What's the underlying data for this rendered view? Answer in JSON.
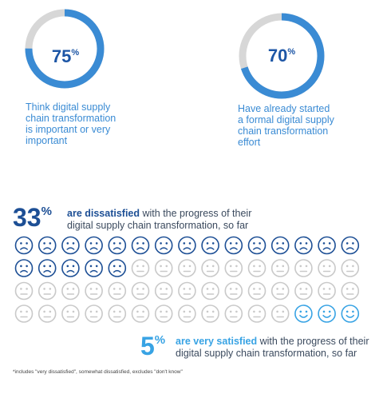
{
  "stat1": {
    "value": "75",
    "percent_sign": "%",
    "caption_lines": [
      "Think digital supply",
      "chain transformation",
      "is important or very",
      "important"
    ],
    "fraction": 0.75
  },
  "stat2": {
    "value": "70",
    "percent_sign": "%",
    "caption_lines": [
      "Have already started",
      "a formal digital supply",
      "chain transformation",
      "effort"
    ],
    "fraction": 0.7
  },
  "dissatisfied": {
    "value": "33",
    "percent_sign": "%",
    "bold_text": "are dissatisfied",
    "rest_line1": " with the progress of their",
    "line2": "digital supply chain transformation, so far"
  },
  "satisfied": {
    "value": "5",
    "percent_sign": "%",
    "bold_text": "are very satisfied",
    "rest_line1": " with the progress of their",
    "line2": "digital supply chain transformation, so far"
  },
  "footnote": "*includes \"very dissatisfied\", somewhat dissatisfied, excludes \"don't know\"",
  "chart_data": {
    "type": "pictograph",
    "grid": {
      "rows": 4,
      "columns": 15,
      "total": 60
    },
    "counts": {
      "dissatisfied": 20,
      "neutral": 37,
      "very_satisfied": 3
    },
    "colors": {
      "dissatisfied": "#1d4f95",
      "neutral": "#c9c9c9",
      "very_satisfied": "#38a3e4",
      "ring_fill": "#3a8bd4",
      "ring_track": "#d7d7d7"
    }
  }
}
